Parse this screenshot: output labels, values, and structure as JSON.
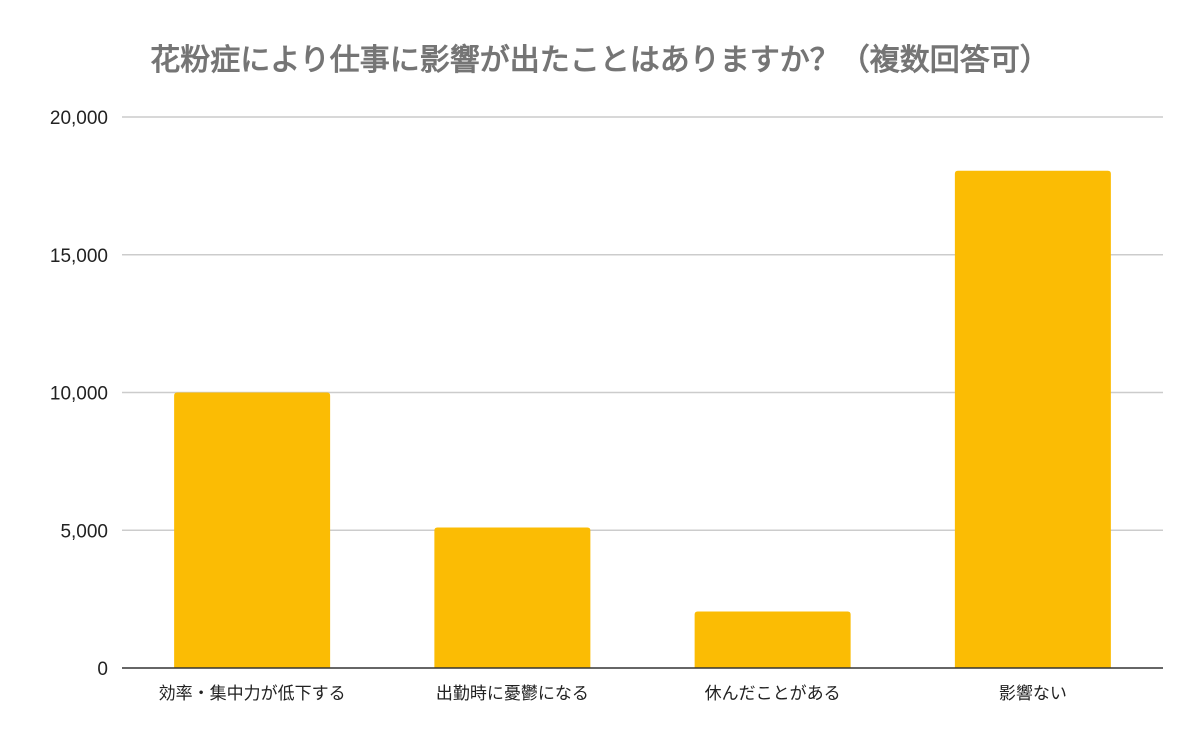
{
  "chart_data": {
    "type": "bar",
    "title": "花粉症により仕事に影響が出たことはありますか？（複数回答可）",
    "xlabel": "",
    "ylabel": "",
    "categories": [
      "効率・集中力が低下する",
      "出勤時に憂鬱になる",
      "休んだことがある",
      "影響ない"
    ],
    "values": [
      10000,
      5100,
      2050,
      18050
    ],
    "ylim": [
      0,
      20000
    ],
    "yticks": [
      0,
      5000,
      10000,
      15000,
      20000
    ],
    "ytick_labels": [
      "0",
      "5,000",
      "10,000",
      "15,000",
      "20,000"
    ],
    "grid": true,
    "legend": "none",
    "bar_color": "#FBBC04"
  }
}
